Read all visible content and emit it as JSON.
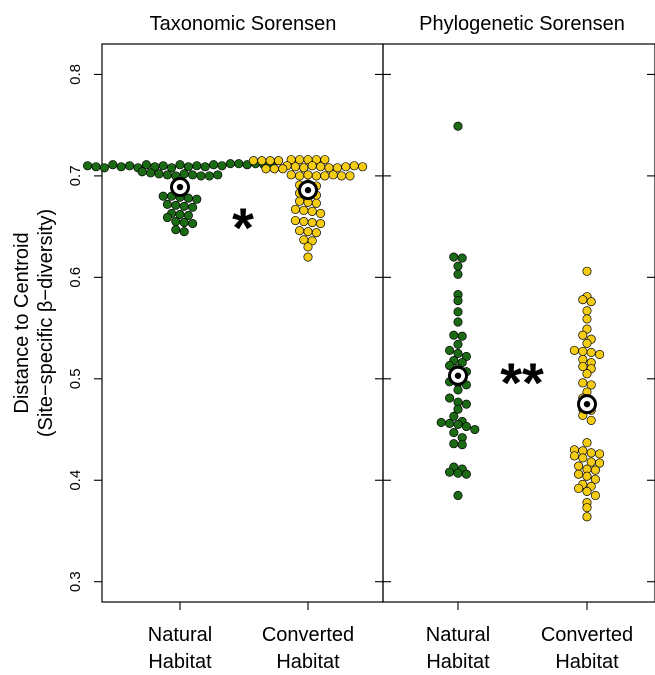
{
  "chart_data": {
    "type": "scatter",
    "ylabel": "Distance to Centroid",
    "ylabel2": "(Site−specific β−diversity)",
    "ylim": [
      0.28,
      0.83
    ],
    "yticks": [
      {
        "value": 0.3,
        "label": "0.3"
      },
      {
        "value": 0.4,
        "label": "0.4"
      },
      {
        "value": 0.5,
        "label": "0.5"
      },
      {
        "value": 0.6,
        "label": "0.6"
      },
      {
        "value": 0.7,
        "label": "0.7"
      },
      {
        "value": 0.8,
        "label": "0.8"
      }
    ],
    "colors": {
      "natural": "#1a6b14",
      "converted": "#f5cc14",
      "outline": "#000000"
    },
    "panels": [
      {
        "title": "Taxonomic Sorensen",
        "significance": "*",
        "groups": [
          {
            "label_line1": "Natural",
            "label_line2": "Habitat",
            "color_key": "natural",
            "centroid": 0.689,
            "values": [
              0.71,
              0.709,
              0.708,
              0.711,
              0.709,
              0.71,
              0.708,
              0.711,
              0.709,
              0.71,
              0.708,
              0.711,
              0.709,
              0.71,
              0.709,
              0.711,
              0.71,
              0.712,
              0.712,
              0.711,
              0.712,
              0.711,
              0.711,
              0.704,
              0.703,
              0.702,
              0.701,
              0.7,
              0.702,
              0.701,
              0.7,
              0.7,
              0.701,
              0.692,
              0.691,
              0.69,
              0.68,
              0.68,
              0.679,
              0.678,
              0.677,
              0.672,
              0.671,
              0.67,
              0.669,
              0.663,
              0.662,
              0.661,
              0.659,
              0.655,
              0.654,
              0.653,
              0.647,
              0.645
            ]
          },
          {
            "label_line1": "Converted",
            "label_line2": "Habitat",
            "color_key": "converted",
            "centroid": 0.686,
            "values": [
              0.716,
              0.716,
              0.715,
              0.716,
              0.715,
              0.715,
              0.716,
              0.716,
              0.715,
              0.71,
              0.709,
              0.708,
              0.71,
              0.709,
              0.708,
              0.708,
              0.707,
              0.709,
              0.71,
              0.707,
              0.707,
              0.709,
              0.701,
              0.7,
              0.701,
              0.7,
              0.7,
              0.701,
              0.7,
              0.7,
              0.692,
              0.691,
              0.69,
              0.69,
              0.683,
              0.682,
              0.681,
              0.675,
              0.674,
              0.673,
              0.667,
              0.666,
              0.665,
              0.663,
              0.656,
              0.655,
              0.654,
              0.653,
              0.646,
              0.645,
              0.644,
              0.637,
              0.636,
              0.63,
              0.62
            ]
          }
        ]
      },
      {
        "title": "Phylogenetic Sorensen",
        "significance": "**",
        "groups": [
          {
            "label_line1": "Natural",
            "label_line2": "Habitat",
            "color_key": "natural",
            "centroid": 0.503,
            "values": [
              0.749,
              0.62,
              0.619,
              0.611,
              0.603,
              0.583,
              0.577,
              0.566,
              0.556,
              0.543,
              0.542,
              0.534,
              0.528,
              0.525,
              0.522,
              0.518,
              0.516,
              0.513,
              0.51,
              0.507,
              0.505,
              0.5,
              0.497,
              0.496,
              0.494,
              0.489,
              0.481,
              0.477,
              0.475,
              0.47,
              0.463,
              0.458,
              0.457,
              0.456,
              0.455,
              0.453,
              0.45,
              0.447,
              0.442,
              0.436,
              0.435,
              0.413,
              0.411,
              0.408,
              0.407,
              0.406,
              0.385
            ]
          },
          {
            "label_line1": "Converted",
            "label_line2": "Habitat",
            "color_key": "converted",
            "centroid": 0.475,
            "values": [
              0.606,
              0.581,
              0.578,
              0.576,
              0.567,
              0.559,
              0.549,
              0.543,
              0.539,
              0.535,
              0.528,
              0.527,
              0.526,
              0.524,
              0.519,
              0.516,
              0.512,
              0.51,
              0.505,
              0.496,
              0.494,
              0.487,
              0.481,
              0.474,
              0.47,
              0.469,
              0.464,
              0.459,
              0.437,
              0.43,
              0.429,
              0.427,
              0.426,
              0.424,
              0.422,
              0.418,
              0.417,
              0.414,
              0.411,
              0.41,
              0.406,
              0.404,
              0.401,
              0.396,
              0.394,
              0.392,
              0.389,
              0.385,
              0.378,
              0.373,
              0.364
            ]
          }
        ]
      }
    ]
  }
}
